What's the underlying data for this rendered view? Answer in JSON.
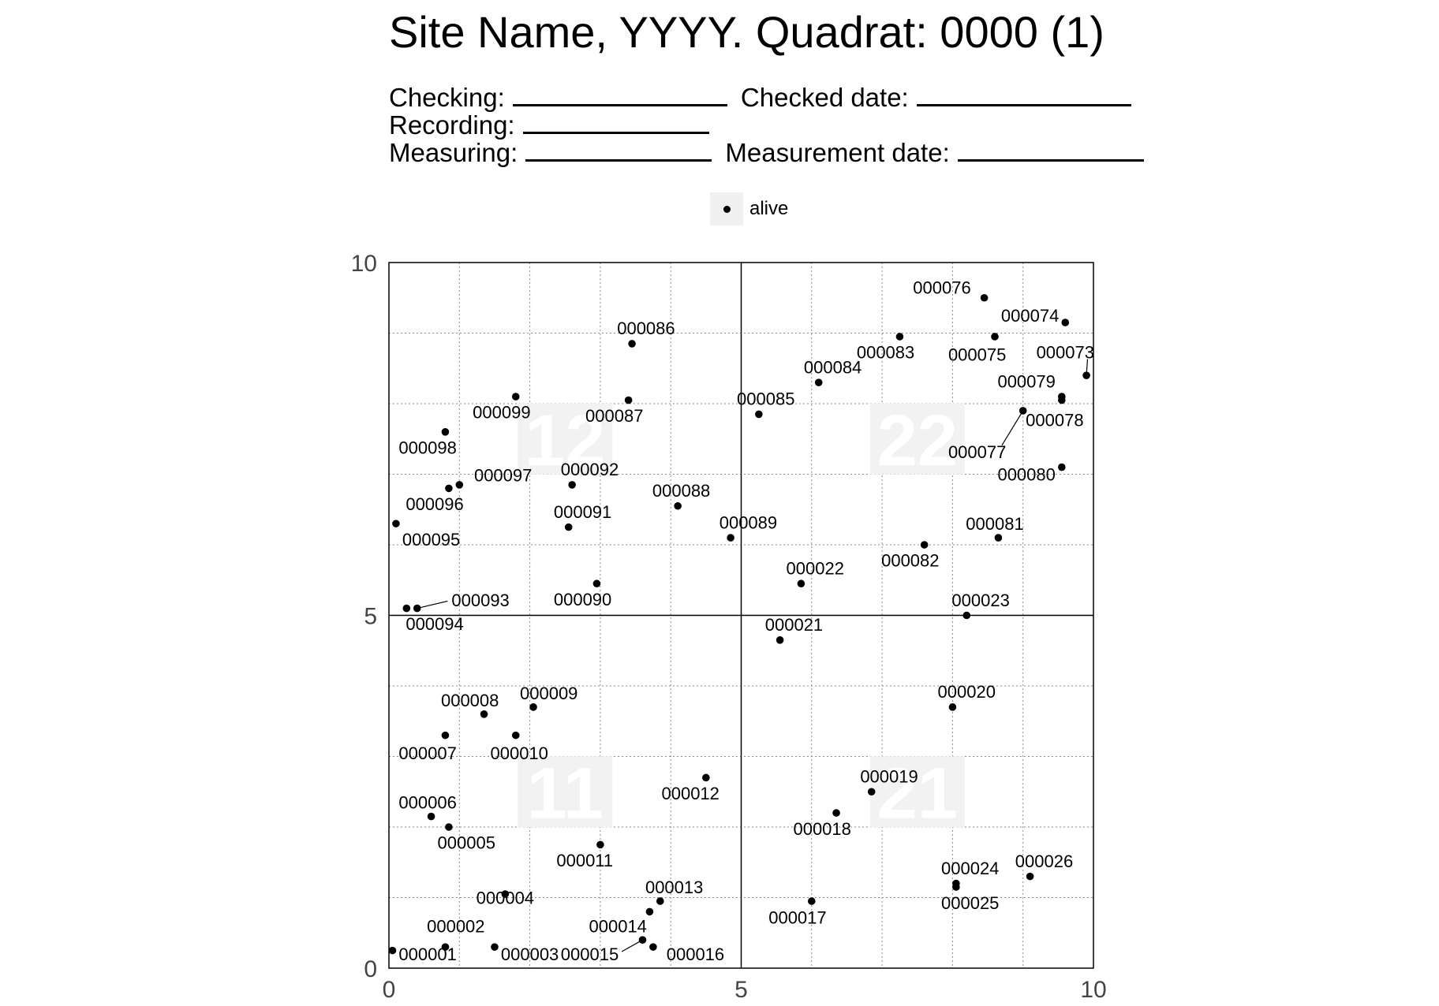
{
  "header": {
    "title": "Site Name, YYYY. Quadrat: 0000 (1)",
    "checking_label": "Checking:",
    "checked_date_label": "Checked date:",
    "recording_label": "Recording:",
    "measuring_label": "Measuring:",
    "measurement_date_label": "Measurement date:"
  },
  "legend": {
    "label": "alive",
    "position": "top"
  },
  "chart_data": {
    "type": "scatter",
    "title": "Site Name, YYYY. Quadrat: 0000 (1)",
    "xlim": [
      0,
      10
    ],
    "ylim": [
      0,
      10
    ],
    "x_ticks": [
      "0",
      "5",
      "10"
    ],
    "y_ticks": [
      "0",
      "5",
      "10"
    ],
    "grid": true,
    "subquadrats": [
      {
        "label": "11",
        "x": 2.5,
        "y": 2.5
      },
      {
        "label": "12",
        "x": 2.5,
        "y": 7.5
      },
      {
        "label": "21",
        "x": 7.5,
        "y": 2.5
      },
      {
        "label": "22",
        "x": 7.5,
        "y": 7.5
      }
    ],
    "series": [
      {
        "name": "alive",
        "points": [
          {
            "tag": "000001",
            "x": 0.05,
            "y": 0.25,
            "lx": 0.55,
            "ly": 0.2
          },
          {
            "tag": "000002",
            "x": 0.8,
            "y": 0.3,
            "lx": 0.95,
            "ly": 0.6
          },
          {
            "tag": "000003",
            "x": 1.5,
            "y": 0.3,
            "lx": 2.0,
            "ly": 0.2
          },
          {
            "tag": "000004",
            "x": 1.65,
            "y": 1.05,
            "lx": 1.65,
            "ly": 1.0
          },
          {
            "tag": "000005",
            "x": 0.85,
            "y": 2.0,
            "lx": 1.1,
            "ly": 1.78
          },
          {
            "tag": "000006",
            "x": 0.6,
            "y": 2.15,
            "lx": 0.55,
            "ly": 2.35
          },
          {
            "tag": "000007",
            "x": 0.8,
            "y": 3.3,
            "lx": 0.55,
            "ly": 3.05
          },
          {
            "tag": "000008",
            "x": 1.35,
            "y": 3.6,
            "lx": 1.15,
            "ly": 3.8
          },
          {
            "tag": "000009",
            "x": 2.05,
            "y": 3.7,
            "lx": 2.27,
            "ly": 3.9
          },
          {
            "tag": "000010",
            "x": 1.8,
            "y": 3.3,
            "lx": 1.85,
            "ly": 3.05
          },
          {
            "tag": "000011",
            "x": 3.0,
            "y": 1.75,
            "lx": 2.78,
            "ly": 1.53
          },
          {
            "tag": "000012",
            "x": 4.5,
            "y": 2.7,
            "lx": 4.28,
            "ly": 2.48
          },
          {
            "tag": "000013",
            "x": 3.85,
            "y": 0.95,
            "lx": 4.05,
            "ly": 1.15
          },
          {
            "tag": "000014",
            "x": 3.7,
            "y": 0.8,
            "lx": 3.25,
            "ly": 0.6
          },
          {
            "tag": "000015",
            "x": 3.6,
            "y": 0.4,
            "lx": 2.85,
            "ly": 0.2
          },
          {
            "tag": "000016",
            "x": 3.75,
            "y": 0.3,
            "lx": 4.35,
            "ly": 0.2
          },
          {
            "tag": "000017",
            "x": 6.0,
            "y": 0.95,
            "lx": 5.8,
            "ly": 0.72
          },
          {
            "tag": "000018",
            "x": 6.35,
            "y": 2.2,
            "lx": 6.15,
            "ly": 1.98
          },
          {
            "tag": "000019",
            "x": 6.85,
            "y": 2.5,
            "lx": 7.1,
            "ly": 2.72
          },
          {
            "tag": "000020",
            "x": 8.0,
            "y": 3.7,
            "lx": 8.2,
            "ly": 3.92
          },
          {
            "tag": "000021",
            "x": 5.55,
            "y": 4.65,
            "lx": 5.75,
            "ly": 4.87
          },
          {
            "tag": "000022",
            "x": 5.85,
            "y": 5.45,
            "lx": 6.05,
            "ly": 5.67
          },
          {
            "tag": "000023",
            "x": 8.2,
            "y": 5.0,
            "lx": 8.4,
            "ly": 5.22
          },
          {
            "tag": "000024",
            "x": 8.05,
            "y": 1.2,
            "lx": 8.25,
            "ly": 1.42
          },
          {
            "tag": "000025",
            "x": 8.05,
            "y": 1.15,
            "lx": 8.25,
            "ly": 0.93
          },
          {
            "tag": "000026",
            "x": 9.1,
            "y": 1.3,
            "lx": 9.3,
            "ly": 1.52
          },
          {
            "tag": "000073",
            "x": 9.9,
            "y": 8.4,
            "lx": 9.6,
            "ly": 8.73
          },
          {
            "tag": "000074",
            "x": 9.6,
            "y": 9.15,
            "lx": 9.1,
            "ly": 9.25
          },
          {
            "tag": "000075",
            "x": 8.6,
            "y": 8.95,
            "lx": 8.35,
            "ly": 8.7
          },
          {
            "tag": "000076",
            "x": 8.45,
            "y": 9.5,
            "lx": 7.85,
            "ly": 9.65
          },
          {
            "tag": "000077",
            "x": 9.0,
            "y": 7.9,
            "lx": 8.35,
            "ly": 7.32
          },
          {
            "tag": "000078",
            "x": 9.55,
            "y": 8.05,
            "lx": 9.45,
            "ly": 7.77
          },
          {
            "tag": "000079",
            "x": 9.55,
            "y": 8.1,
            "lx": 9.05,
            "ly": 8.32
          },
          {
            "tag": "000080",
            "x": 9.55,
            "y": 7.1,
            "lx": 9.05,
            "ly": 7.0
          },
          {
            "tag": "000081",
            "x": 8.65,
            "y": 6.1,
            "lx": 8.6,
            "ly": 6.3
          },
          {
            "tag": "000082",
            "x": 7.6,
            "y": 6.0,
            "lx": 7.4,
            "ly": 5.78
          },
          {
            "tag": "000083",
            "x": 7.25,
            "y": 8.95,
            "lx": 7.05,
            "ly": 8.73
          },
          {
            "tag": "000084",
            "x": 6.1,
            "y": 8.3,
            "lx": 6.3,
            "ly": 8.52
          },
          {
            "tag": "000085",
            "x": 5.25,
            "y": 7.85,
            "lx": 5.35,
            "ly": 8.07
          },
          {
            "tag": "000086",
            "x": 3.45,
            "y": 8.85,
            "lx": 3.65,
            "ly": 9.07
          },
          {
            "tag": "000087",
            "x": 3.4,
            "y": 8.05,
            "lx": 3.2,
            "ly": 7.83
          },
          {
            "tag": "000088",
            "x": 4.1,
            "y": 6.55,
            "lx": 4.15,
            "ly": 6.77
          },
          {
            "tag": "000089",
            "x": 4.85,
            "y": 6.1,
            "lx": 5.1,
            "ly": 6.32
          },
          {
            "tag": "000090",
            "x": 2.95,
            "y": 5.45,
            "lx": 2.75,
            "ly": 5.23
          },
          {
            "tag": "000091",
            "x": 2.55,
            "y": 6.25,
            "lx": 2.75,
            "ly": 6.47
          },
          {
            "tag": "000092",
            "x": 2.6,
            "y": 6.85,
            "lx": 2.85,
            "ly": 7.07
          },
          {
            "tag": "000093",
            "x": 0.4,
            "y": 5.1,
            "lx": 1.3,
            "ly": 5.22
          },
          {
            "tag": "000094",
            "x": 0.25,
            "y": 5.1,
            "lx": 0.65,
            "ly": 4.88
          },
          {
            "tag": "000095",
            "x": 0.1,
            "y": 6.3,
            "lx": 0.6,
            "ly": 6.08
          },
          {
            "tag": "000096",
            "x": 0.85,
            "y": 6.8,
            "lx": 0.65,
            "ly": 6.58
          },
          {
            "tag": "000097",
            "x": 1.0,
            "y": 6.85,
            "lx": 1.62,
            "ly": 6.99
          },
          {
            "tag": "000098",
            "x": 0.8,
            "y": 7.6,
            "lx": 0.55,
            "ly": 7.38
          },
          {
            "tag": "000099",
            "x": 1.8,
            "y": 8.1,
            "lx": 1.6,
            "ly": 7.88
          }
        ],
        "leader_lines": [
          "000073",
          "000077",
          "000093",
          "000015"
        ]
      }
    ]
  }
}
